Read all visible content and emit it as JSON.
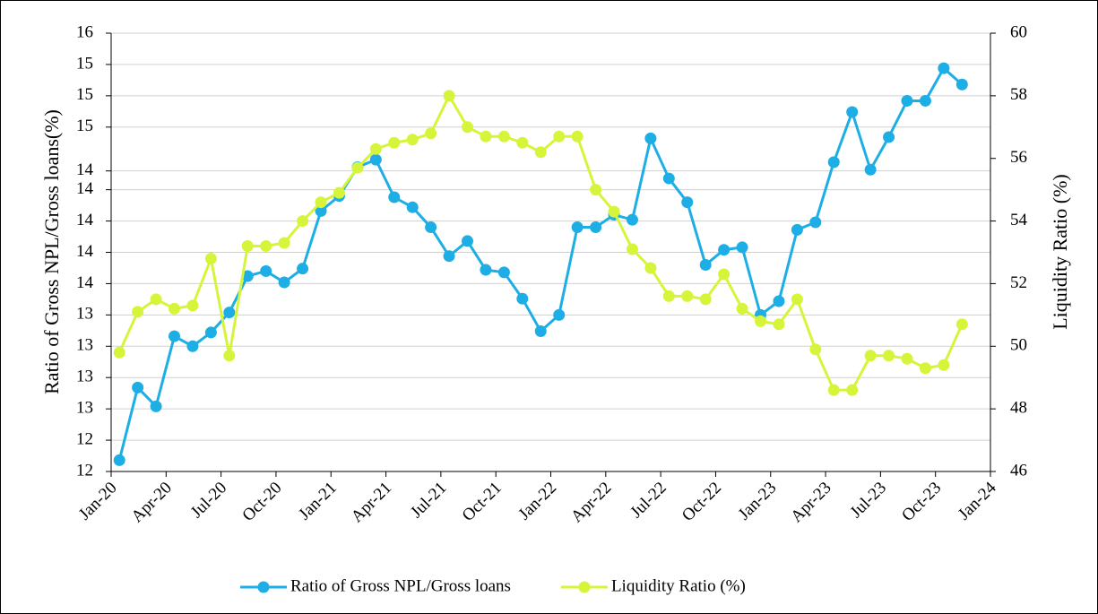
{
  "chart_data": {
    "type": "line",
    "y_label": "Ratio of Gross NPL/Gross loans(%)",
    "y2_label": "Liquidity Ratio (%)",
    "x": [
      "Jan-20",
      "Feb-20",
      "Mar-20",
      "Apr-20",
      "May-20",
      "Jun-20",
      "Jul-20",
      "Aug-20",
      "Sep-20",
      "Oct-20",
      "Nov-20",
      "Dec-20",
      "Jan-21",
      "Feb-21",
      "Mar-21",
      "Apr-21",
      "May-21",
      "Jun-21",
      "Jul-21",
      "Aug-21",
      "Sep-21",
      "Oct-21",
      "Nov-21",
      "Dec-21",
      "Jan-22",
      "Feb-22",
      "Mar-22",
      "Apr-22",
      "May-22",
      "Jun-22",
      "Jul-22",
      "Aug-22",
      "Sep-22",
      "Oct-22",
      "Nov-22",
      "Dec-22",
      "Jan-23",
      "Feb-23",
      "Mar-23",
      "Apr-23",
      "May-23",
      "Jun-23",
      "Jul-23",
      "Aug-23",
      "Sep-23",
      "Oct-23",
      "Nov-23"
    ],
    "xlim": [
      "Jan-20",
      "Jan-24"
    ],
    "xticks": [
      "Jan-20",
      "Apr-20",
      "Jul-20",
      "Oct-20",
      "Jan-21",
      "Apr-21",
      "Jul-21",
      "Oct-21",
      "Jan-22",
      "Apr-22",
      "Jul-22",
      "Oct-22",
      "Jan-23",
      "Apr-23",
      "Jul-23",
      "Oct-23",
      "Jan-24"
    ],
    "ylim": [
      12,
      15.5
    ],
    "yticks": [
      {
        "value": 12,
        "label": "12"
      },
      {
        "value": 12.25,
        "label": "12"
      },
      {
        "value": 12.5,
        "label": "13"
      },
      {
        "value": 12.75,
        "label": "13"
      },
      {
        "value": 13,
        "label": "13"
      },
      {
        "value": 13.25,
        "label": "13"
      },
      {
        "value": 13.5,
        "label": "14"
      },
      {
        "value": 13.75,
        "label": "14"
      },
      {
        "value": 14,
        "label": "14"
      },
      {
        "value": 14.25,
        "label": "14"
      },
      {
        "value": 14.4,
        "label": "14"
      },
      {
        "value": 14.75,
        "label": "15"
      },
      {
        "value": 15,
        "label": "15"
      },
      {
        "value": 15.25,
        "label": "15"
      },
      {
        "value": 15.5,
        "label": "16"
      }
    ],
    "y2lim": [
      46,
      60
    ],
    "y2ticks": [
      46,
      48,
      50,
      52,
      54,
      56,
      58,
      60
    ],
    "grid": true,
    "legend": "bottom",
    "series": [
      {
        "name": "Ratio of Gross NPL/Gross loans",
        "color": "#1eaee6",
        "axis": "y",
        "values": [
          12.09,
          12.67,
          12.52,
          13.08,
          13.0,
          13.11,
          13.27,
          13.56,
          13.6,
          13.51,
          13.62,
          14.08,
          14.2,
          14.43,
          14.49,
          14.19,
          14.11,
          13.95,
          13.72,
          13.84,
          13.61,
          13.59,
          13.38,
          13.12,
          13.25,
          13.95,
          13.95,
          14.05,
          14.01,
          14.66,
          14.34,
          14.15,
          13.65,
          13.77,
          13.79,
          13.25,
          13.36,
          13.93,
          13.99,
          14.47,
          14.87,
          14.41,
          14.67,
          14.96,
          14.96,
          15.22,
          15.09
        ]
      },
      {
        "name": "Liquidity Ratio (%)",
        "color": "#d6f53a",
        "axis": "y2",
        "values": [
          49.8,
          51.1,
          51.5,
          51.2,
          51.3,
          52.8,
          49.7,
          53.2,
          53.2,
          53.3,
          54.0,
          54.6,
          54.9,
          55.7,
          56.3,
          56.5,
          56.6,
          56.8,
          58.0,
          57.0,
          56.7,
          56.7,
          56.5,
          56.2,
          56.7,
          56.7,
          55.0,
          54.3,
          53.1,
          52.5,
          51.6,
          51.6,
          51.5,
          52.3,
          51.2,
          50.8,
          50.7,
          51.5,
          49.9,
          48.6,
          48.6,
          49.7,
          49.7,
          49.6,
          49.3,
          49.4,
          50.7
        ]
      }
    ]
  }
}
